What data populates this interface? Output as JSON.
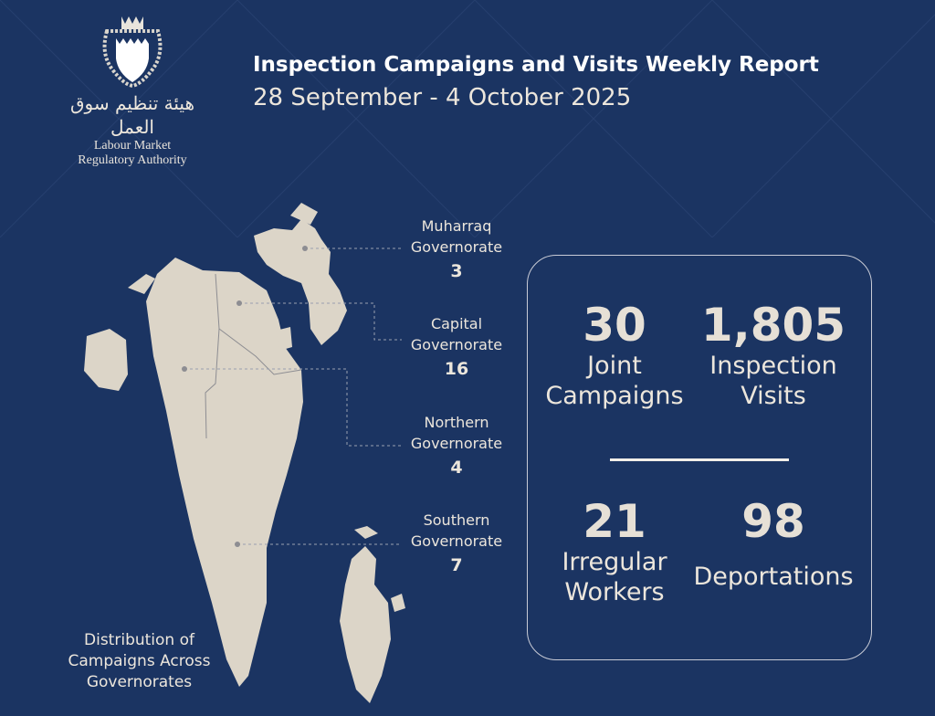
{
  "colors": {
    "background": "#1b3462",
    "text": "#ece6dc",
    "map": "#dcd5c8"
  },
  "logo": {
    "arabic": "هيئة تنظيم سوق العمل",
    "line1": "Labour Market",
    "line2": "Regulatory Authority"
  },
  "header": {
    "title": "Inspection Campaigns and Visits Weekly Report",
    "subtitle": "28 September - 4 October 2025"
  },
  "map": {
    "caption": "Distribution of Campaigns Across Governorates",
    "governorates": [
      {
        "line1": "Muharraq",
        "line2": "Governorate",
        "value": "3"
      },
      {
        "line1": "Capital",
        "line2": "Governorate",
        "value": "16"
      },
      {
        "line1": "Northern",
        "line2": "Governorate",
        "value": "4"
      },
      {
        "line1": "Southern",
        "line2": "Governorate",
        "value": "7"
      }
    ]
  },
  "stats": [
    {
      "value": "30",
      "line1": "Joint",
      "line2": "Campaigns"
    },
    {
      "value": "1,805",
      "line1": "Inspection",
      "line2": "Visits"
    },
    {
      "value": "21",
      "line1": "Irregular",
      "line2": "Workers"
    },
    {
      "value": "98",
      "line1": "Deportations",
      "line2": ""
    }
  ]
}
